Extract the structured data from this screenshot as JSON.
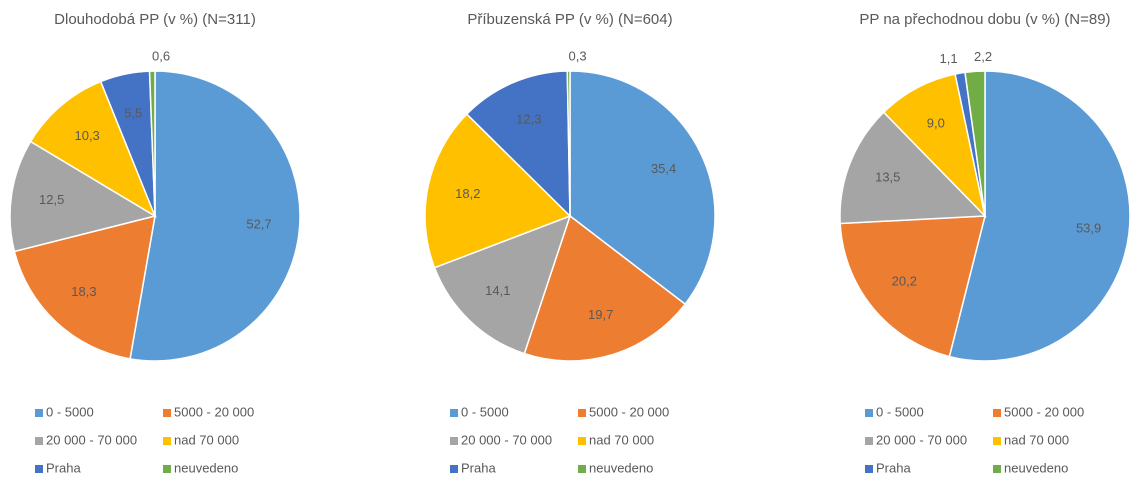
{
  "chart_data": [
    {
      "type": "pie",
      "title": "Dlouhodobá PP (v %) (N=311)",
      "categories": [
        "0 - 5000",
        "5000 - 20 000",
        "20 000 - 70 000",
        "nad 70 000",
        "Praha",
        "neuvedeno"
      ],
      "values": [
        52.7,
        18.3,
        12.5,
        10.3,
        5.5,
        0.6
      ],
      "value_labels": [
        "52,7",
        "18,3",
        "12,5",
        "10,3",
        "5,5",
        "0,6"
      ],
      "colors": [
        "#5b9bd5",
        "#ed7d31",
        "#a5a5a5",
        "#ffc000",
        "#4472c4",
        "#70ad47"
      ]
    },
    {
      "type": "pie",
      "title": "Příbuzenská PP (v %) (N=604)",
      "categories": [
        "0 - 5000",
        "5000 - 20 000",
        "20 000 - 70 000",
        "nad 70 000",
        "Praha",
        "neuvedeno"
      ],
      "values": [
        35.4,
        19.7,
        14.1,
        18.2,
        12.3,
        0.3
      ],
      "value_labels": [
        "35,4",
        "19,7",
        "14,1",
        "18,2",
        "12,3",
        "0,3"
      ],
      "colors": [
        "#5b9bd5",
        "#ed7d31",
        "#a5a5a5",
        "#ffc000",
        "#4472c4",
        "#70ad47"
      ]
    },
    {
      "type": "pie",
      "title": "PP na přechodnou dobu (v %) (N=89)",
      "categories": [
        "0 - 5000",
        "5000 - 20 000",
        "20 000 - 70 000",
        "nad 70 000",
        "Praha",
        "neuvedeno"
      ],
      "values": [
        53.9,
        20.2,
        13.5,
        9.0,
        1.1,
        2.2
      ],
      "value_labels": [
        "53,9",
        "20,2",
        "13,5",
        "9,0",
        "1,1",
        "2,2"
      ],
      "colors": [
        "#5b9bd5",
        "#ed7d31",
        "#a5a5a5",
        "#ffc000",
        "#4472c4",
        "#70ad47"
      ]
    }
  ]
}
